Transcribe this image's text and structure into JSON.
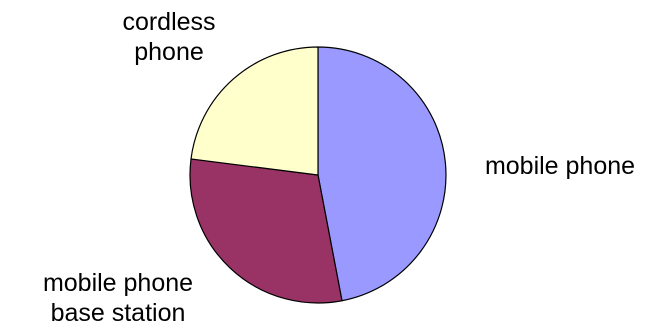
{
  "chart_data": {
    "type": "pie",
    "slices": [
      {
        "label_lines": [
          "mobile phone"
        ],
        "value": 47,
        "color": "#9999FF"
      },
      {
        "label_lines": [
          "mobile phone",
          "base station"
        ],
        "value": 30,
        "color": "#993366"
      },
      {
        "label_lines": [
          "cordless",
          "phone"
        ],
        "value": 23,
        "color": "#FFFFCC"
      }
    ],
    "legend": "none",
    "start": "top",
    "direction": "clockwise"
  }
}
